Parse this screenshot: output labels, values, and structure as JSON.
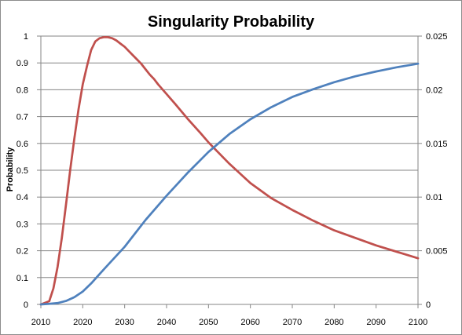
{
  "chart_data": {
    "type": "line",
    "title": "Singularity Probability",
    "ylabel": "Probability",
    "xlabel": "",
    "x_ticks": [
      2010,
      2020,
      2030,
      2040,
      2050,
      2060,
      2070,
      2080,
      2090,
      2100
    ],
    "y_ticks": [
      "0",
      "0.1",
      "0.2",
      "0.3",
      "0.4",
      "0.5",
      "0.6",
      "0.7",
      "0.8",
      "0.9",
      "1"
    ],
    "y2_ticks": [
      "0",
      "0.005",
      "0.01",
      "0.015",
      "0.02",
      "0.025"
    ],
    "xlim": [
      2010,
      2100
    ],
    "ylim": [
      0,
      1
    ],
    "y2lim": [
      0,
      0.025
    ],
    "grid": "horizontal",
    "legend": "none",
    "series": [
      {
        "axis": "secondary",
        "color": "#c0504d",
        "x": [
          2010,
          2012,
          2013,
          2014,
          2015,
          2016,
          2017,
          2018,
          2019,
          2020,
          2021,
          2022,
          2023,
          2024,
          2025,
          2026,
          2027,
          2028,
          2029,
          2030,
          2031,
          2032,
          2033,
          2034,
          2035,
          2036,
          2037,
          2038,
          2040,
          2042,
          2045,
          2048,
          2050,
          2052,
          2055,
          2060,
          2065,
          2070,
          2075,
          2080,
          2085,
          2090,
          2095,
          2100
        ],
        "y": [
          0,
          0.0003,
          0.0015,
          0.0035,
          0.0062,
          0.0093,
          0.0125,
          0.0155,
          0.0182,
          0.0205,
          0.0222,
          0.0237,
          0.0245,
          0.0248,
          0.0249,
          0.0249,
          0.0248,
          0.0246,
          0.0243,
          0.024,
          0.0236,
          0.0232,
          0.0228,
          0.0224,
          0.0219,
          0.0214,
          0.021,
          0.0205,
          0.0196,
          0.0187,
          0.0173,
          0.016,
          0.0151,
          0.0143,
          0.0131,
          0.0113,
          0.0099,
          0.0088,
          0.0078,
          0.0069,
          0.0062,
          0.0055,
          0.0049,
          0.0043
        ]
      },
      {
        "axis": "primary",
        "color": "#4f81bd",
        "x": [
          2010,
          2012,
          2014,
          2016,
          2018,
          2020,
          2022,
          2025,
          2030,
          2035,
          2040,
          2045,
          2050,
          2055,
          2060,
          2065,
          2070,
          2075,
          2080,
          2085,
          2090,
          2095,
          2100
        ],
        "y": [
          0,
          0.002,
          0.005,
          0.013,
          0.027,
          0.048,
          0.078,
          0.13,
          0.215,
          0.315,
          0.405,
          0.49,
          0.568,
          0.635,
          0.69,
          0.735,
          0.773,
          0.802,
          0.828,
          0.85,
          0.868,
          0.884,
          0.897
        ]
      }
    ]
  }
}
